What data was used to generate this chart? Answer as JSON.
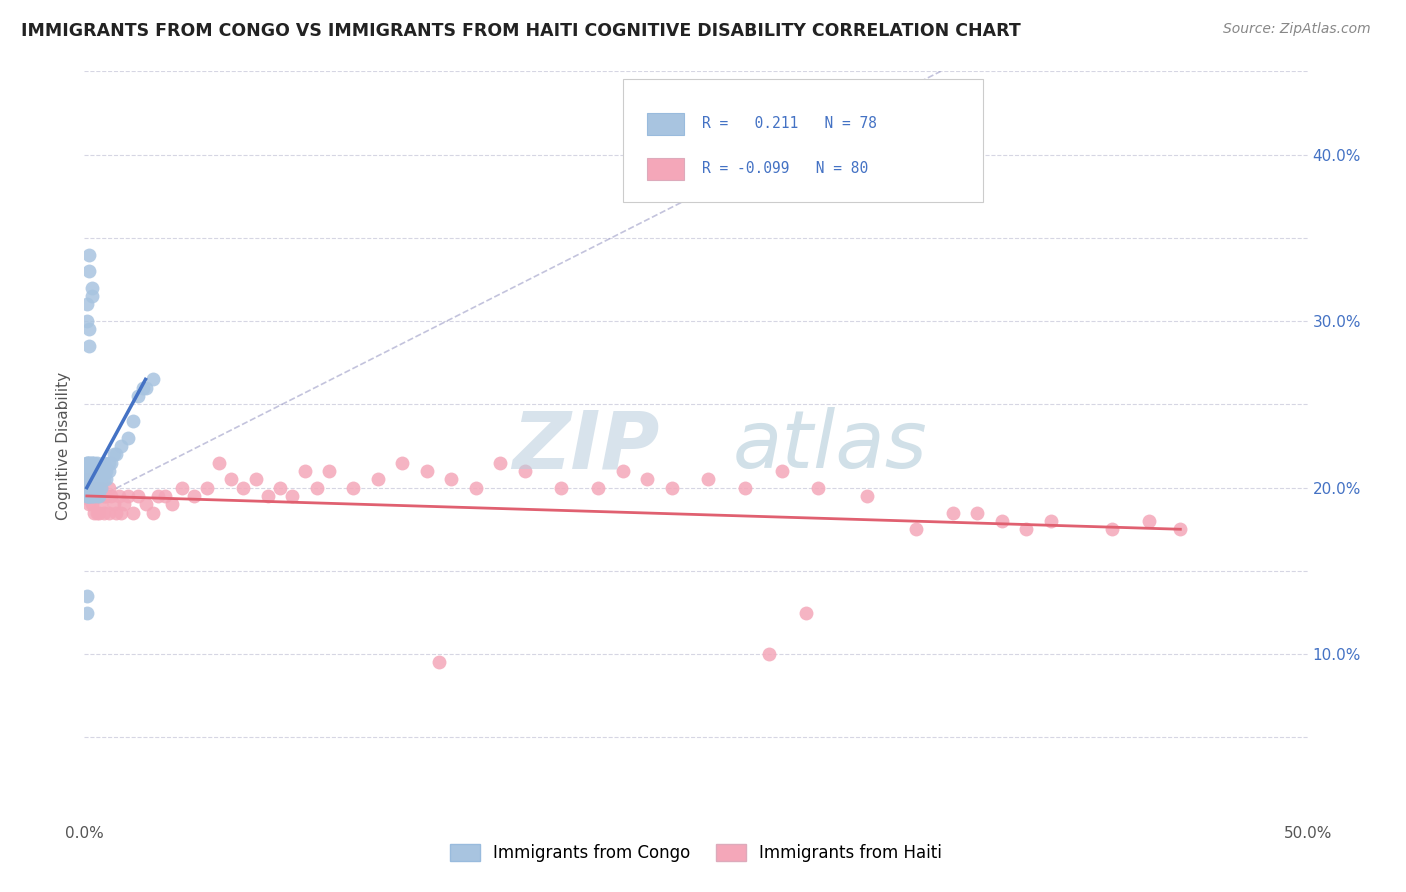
{
  "title": "IMMIGRANTS FROM CONGO VS IMMIGRANTS FROM HAITI COGNITIVE DISABILITY CORRELATION CHART",
  "source": "Source: ZipAtlas.com",
  "ylabel_label": "Cognitive Disability",
  "xlim": [
    0.0,
    0.5
  ],
  "ylim": [
    0.0,
    0.45
  ],
  "congo_color": "#a8c4e0",
  "haiti_color": "#f4a7b9",
  "congo_line_color": "#4472c4",
  "haiti_line_color": "#e06070",
  "dashed_line_color": "#8888bb",
  "background_color": "#ffffff",
  "congo_x": [
    0.001,
    0.001,
    0.001,
    0.001,
    0.001,
    0.001,
    0.001,
    0.001,
    0.001,
    0.001,
    0.002,
    0.002,
    0.002,
    0.002,
    0.002,
    0.002,
    0.002,
    0.002,
    0.002,
    0.002,
    0.002,
    0.002,
    0.002,
    0.003,
    0.003,
    0.003,
    0.003,
    0.003,
    0.003,
    0.003,
    0.003,
    0.003,
    0.004,
    0.004,
    0.004,
    0.004,
    0.004,
    0.004,
    0.004,
    0.005,
    0.005,
    0.005,
    0.005,
    0.005,
    0.006,
    0.006,
    0.006,
    0.006,
    0.007,
    0.007,
    0.007,
    0.008,
    0.008,
    0.008,
    0.009,
    0.009,
    0.01,
    0.01,
    0.011,
    0.012,
    0.013,
    0.015,
    0.018,
    0.02,
    0.025,
    0.001,
    0.001,
    0.002,
    0.002,
    0.002,
    0.002,
    0.003,
    0.003,
    0.001,
    0.001,
    0.022,
    0.024,
    0.028
  ],
  "congo_y": [
    0.2,
    0.205,
    0.21,
    0.215,
    0.195,
    0.2,
    0.205,
    0.21,
    0.215,
    0.195,
    0.195,
    0.2,
    0.205,
    0.21,
    0.215,
    0.195,
    0.2,
    0.205,
    0.21,
    0.215,
    0.195,
    0.2,
    0.205,
    0.21,
    0.215,
    0.195,
    0.2,
    0.205,
    0.21,
    0.215,
    0.195,
    0.2,
    0.205,
    0.21,
    0.215,
    0.195,
    0.2,
    0.205,
    0.21,
    0.215,
    0.2,
    0.205,
    0.21,
    0.195,
    0.2,
    0.205,
    0.21,
    0.195,
    0.205,
    0.21,
    0.2,
    0.205,
    0.21,
    0.215,
    0.205,
    0.21,
    0.21,
    0.215,
    0.215,
    0.22,
    0.22,
    0.225,
    0.23,
    0.24,
    0.26,
    0.3,
    0.31,
    0.285,
    0.295,
    0.33,
    0.34,
    0.315,
    0.32,
    0.135,
    0.125,
    0.255,
    0.26,
    0.265
  ],
  "haiti_x": [
    0.001,
    0.001,
    0.001,
    0.002,
    0.002,
    0.002,
    0.003,
    0.003,
    0.003,
    0.004,
    0.004,
    0.004,
    0.005,
    0.005,
    0.005,
    0.006,
    0.006,
    0.007,
    0.007,
    0.008,
    0.008,
    0.009,
    0.01,
    0.01,
    0.011,
    0.012,
    0.013,
    0.014,
    0.015,
    0.016,
    0.018,
    0.02,
    0.022,
    0.025,
    0.028,
    0.03,
    0.033,
    0.036,
    0.04,
    0.045,
    0.05,
    0.055,
    0.06,
    0.065,
    0.07,
    0.075,
    0.08,
    0.085,
    0.09,
    0.095,
    0.1,
    0.11,
    0.12,
    0.13,
    0.14,
    0.15,
    0.16,
    0.17,
    0.18,
    0.195,
    0.21,
    0.22,
    0.23,
    0.24,
    0.255,
    0.27,
    0.285,
    0.3,
    0.32,
    0.34,
    0.355,
    0.365,
    0.375,
    0.385,
    0.395,
    0.42,
    0.435,
    0.448,
    0.295,
    0.28,
    0.145
  ],
  "haiti_y": [
    0.195,
    0.2,
    0.205,
    0.19,
    0.195,
    0.2,
    0.19,
    0.195,
    0.2,
    0.195,
    0.2,
    0.185,
    0.195,
    0.2,
    0.185,
    0.195,
    0.185,
    0.2,
    0.19,
    0.195,
    0.185,
    0.195,
    0.2,
    0.185,
    0.195,
    0.19,
    0.185,
    0.195,
    0.185,
    0.19,
    0.195,
    0.185,
    0.195,
    0.19,
    0.185,
    0.195,
    0.195,
    0.19,
    0.2,
    0.195,
    0.2,
    0.215,
    0.205,
    0.2,
    0.205,
    0.195,
    0.2,
    0.195,
    0.21,
    0.2,
    0.21,
    0.2,
    0.205,
    0.215,
    0.21,
    0.205,
    0.2,
    0.215,
    0.21,
    0.2,
    0.2,
    0.21,
    0.205,
    0.2,
    0.205,
    0.2,
    0.21,
    0.2,
    0.195,
    0.175,
    0.185,
    0.185,
    0.18,
    0.175,
    0.18,
    0.175,
    0.18,
    0.175,
    0.125,
    0.1,
    0.095
  ],
  "congo_line_x": [
    0.001,
    0.025
  ],
  "congo_line_y": [
    0.2,
    0.265
  ],
  "haiti_line_x": [
    0.001,
    0.448
  ],
  "haiti_line_y": [
    0.195,
    0.175
  ],
  "dash_line_x": [
    0.0,
    0.35
  ],
  "dash_line_y": [
    0.19,
    0.45
  ]
}
